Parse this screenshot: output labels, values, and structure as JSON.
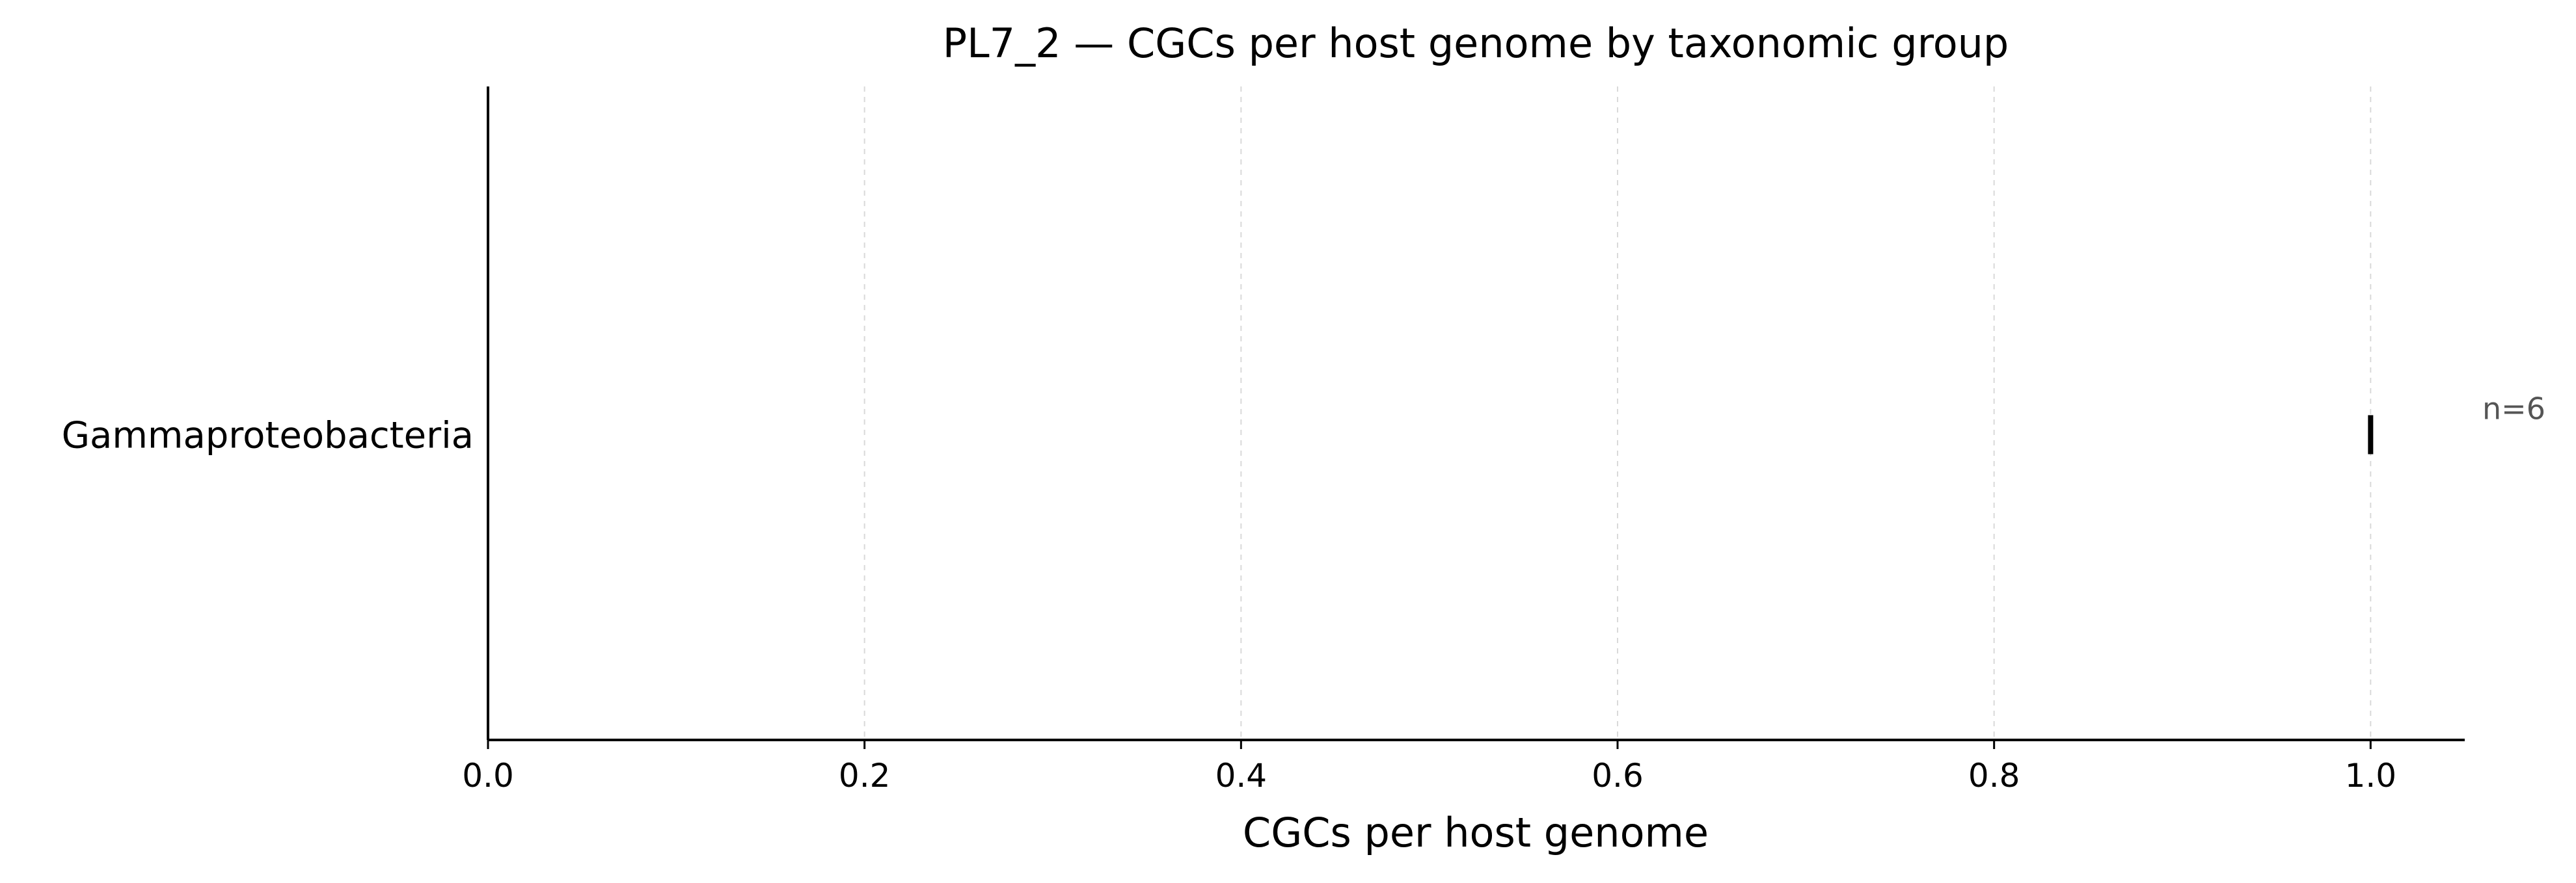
{
  "chart_data": {
    "type": "scatter",
    "title": "PL7_2 — CGCs per host genome by taxonomic group",
    "xlabel": "CGCs per host genome",
    "ylabel": "",
    "xlim": [
      0,
      1.05
    ],
    "x_ticks": [
      0.0,
      0.2,
      0.4,
      0.6,
      0.8,
      1.0
    ],
    "x_tick_labels": [
      "0.0",
      "0.2",
      "0.4",
      "0.6",
      "0.8",
      "1.0"
    ],
    "grid": "vertical dashed",
    "categories": [
      "Gammaproteobacteria"
    ],
    "series": [
      {
        "values": [
          1.0
        ],
        "counts": [
          "n=6"
        ]
      }
    ]
  }
}
